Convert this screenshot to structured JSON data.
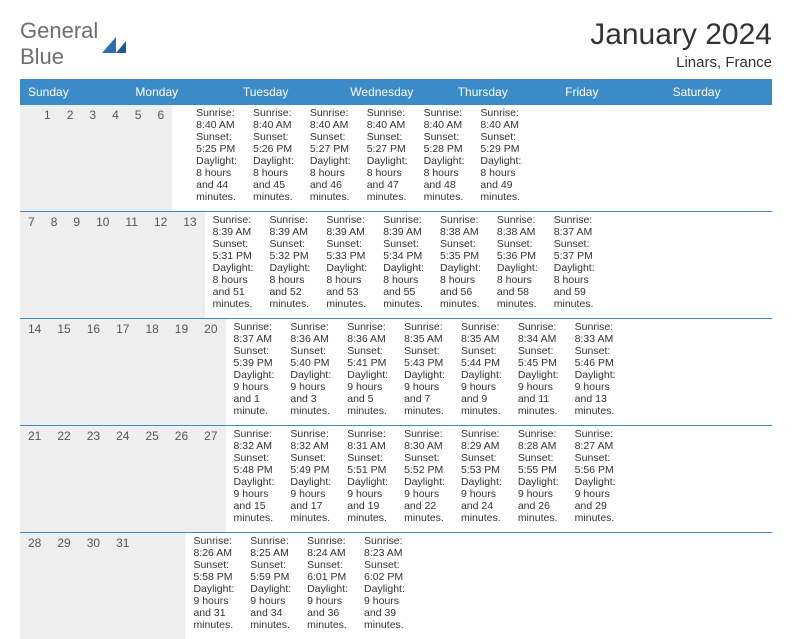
{
  "logo": {
    "word1": "General",
    "word2": "Blue",
    "text_color": "#6d6e71",
    "mark_color": "#2b6fb0"
  },
  "title": "January 2024",
  "subtitle": "Linars, France",
  "header_bg": "#3b8bc9",
  "header_text_color": "#ffffff",
  "daynum_bg": "#eeeeee",
  "week_divider_color": "#3b8bc9",
  "body_font_size": 10.5,
  "days_of_week": [
    "Sunday",
    "Monday",
    "Tuesday",
    "Wednesday",
    "Thursday",
    "Friday",
    "Saturday"
  ],
  "weeks": [
    {
      "nums": [
        "",
        "1",
        "2",
        "3",
        "4",
        "5",
        "6"
      ],
      "cells": [
        [],
        [
          "Sunrise: 8:40 AM",
          "Sunset: 5:25 PM",
          "Daylight: 8 hours",
          "and 44 minutes."
        ],
        [
          "Sunrise: 8:40 AM",
          "Sunset: 5:26 PM",
          "Daylight: 8 hours",
          "and 45 minutes."
        ],
        [
          "Sunrise: 8:40 AM",
          "Sunset: 5:27 PM",
          "Daylight: 8 hours",
          "and 46 minutes."
        ],
        [
          "Sunrise: 8:40 AM",
          "Sunset: 5:27 PM",
          "Daylight: 8 hours",
          "and 47 minutes."
        ],
        [
          "Sunrise: 8:40 AM",
          "Sunset: 5:28 PM",
          "Daylight: 8 hours",
          "and 48 minutes."
        ],
        [
          "Sunrise: 8:40 AM",
          "Sunset: 5:29 PM",
          "Daylight: 8 hours",
          "and 49 minutes."
        ]
      ]
    },
    {
      "nums": [
        "7",
        "8",
        "9",
        "10",
        "11",
        "12",
        "13"
      ],
      "cells": [
        [
          "Sunrise: 8:39 AM",
          "Sunset: 5:31 PM",
          "Daylight: 8 hours",
          "and 51 minutes."
        ],
        [
          "Sunrise: 8:39 AM",
          "Sunset: 5:32 PM",
          "Daylight: 8 hours",
          "and 52 minutes."
        ],
        [
          "Sunrise: 8:39 AM",
          "Sunset: 5:33 PM",
          "Daylight: 8 hours",
          "and 53 minutes."
        ],
        [
          "Sunrise: 8:39 AM",
          "Sunset: 5:34 PM",
          "Daylight: 8 hours",
          "and 55 minutes."
        ],
        [
          "Sunrise: 8:38 AM",
          "Sunset: 5:35 PM",
          "Daylight: 8 hours",
          "and 56 minutes."
        ],
        [
          "Sunrise: 8:38 AM",
          "Sunset: 5:36 PM",
          "Daylight: 8 hours",
          "and 58 minutes."
        ],
        [
          "Sunrise: 8:37 AM",
          "Sunset: 5:37 PM",
          "Daylight: 8 hours",
          "and 59 minutes."
        ]
      ]
    },
    {
      "nums": [
        "14",
        "15",
        "16",
        "17",
        "18",
        "19",
        "20"
      ],
      "cells": [
        [
          "Sunrise: 8:37 AM",
          "Sunset: 5:39 PM",
          "Daylight: 9 hours",
          "and 1 minute."
        ],
        [
          "Sunrise: 8:36 AM",
          "Sunset: 5:40 PM",
          "Daylight: 9 hours",
          "and 3 minutes."
        ],
        [
          "Sunrise: 8:36 AM",
          "Sunset: 5:41 PM",
          "Daylight: 9 hours",
          "and 5 minutes."
        ],
        [
          "Sunrise: 8:35 AM",
          "Sunset: 5:43 PM",
          "Daylight: 9 hours",
          "and 7 minutes."
        ],
        [
          "Sunrise: 8:35 AM",
          "Sunset: 5:44 PM",
          "Daylight: 9 hours",
          "and 9 minutes."
        ],
        [
          "Sunrise: 8:34 AM",
          "Sunset: 5:45 PM",
          "Daylight: 9 hours",
          "and 11 minutes."
        ],
        [
          "Sunrise: 8:33 AM",
          "Sunset: 5:46 PM",
          "Daylight: 9 hours",
          "and 13 minutes."
        ]
      ]
    },
    {
      "nums": [
        "21",
        "22",
        "23",
        "24",
        "25",
        "26",
        "27"
      ],
      "cells": [
        [
          "Sunrise: 8:32 AM",
          "Sunset: 5:48 PM",
          "Daylight: 9 hours",
          "and 15 minutes."
        ],
        [
          "Sunrise: 8:32 AM",
          "Sunset: 5:49 PM",
          "Daylight: 9 hours",
          "and 17 minutes."
        ],
        [
          "Sunrise: 8:31 AM",
          "Sunset: 5:51 PM",
          "Daylight: 9 hours",
          "and 19 minutes."
        ],
        [
          "Sunrise: 8:30 AM",
          "Sunset: 5:52 PM",
          "Daylight: 9 hours",
          "and 22 minutes."
        ],
        [
          "Sunrise: 8:29 AM",
          "Sunset: 5:53 PM",
          "Daylight: 9 hours",
          "and 24 minutes."
        ],
        [
          "Sunrise: 8:28 AM",
          "Sunset: 5:55 PM",
          "Daylight: 9 hours",
          "and 26 minutes."
        ],
        [
          "Sunrise: 8:27 AM",
          "Sunset: 5:56 PM",
          "Daylight: 9 hours",
          "and 29 minutes."
        ]
      ]
    },
    {
      "nums": [
        "28",
        "29",
        "30",
        "31",
        "",
        "",
        ""
      ],
      "cells": [
        [
          "Sunrise: 8:26 AM",
          "Sunset: 5:58 PM",
          "Daylight: 9 hours",
          "and 31 minutes."
        ],
        [
          "Sunrise: 8:25 AM",
          "Sunset: 5:59 PM",
          "Daylight: 9 hours",
          "and 34 minutes."
        ],
        [
          "Sunrise: 8:24 AM",
          "Sunset: 6:01 PM",
          "Daylight: 9 hours",
          "and 36 minutes."
        ],
        [
          "Sunrise: 8:23 AM",
          "Sunset: 6:02 PM",
          "Daylight: 9 hours",
          "and 39 minutes."
        ],
        [],
        [],
        []
      ]
    }
  ]
}
